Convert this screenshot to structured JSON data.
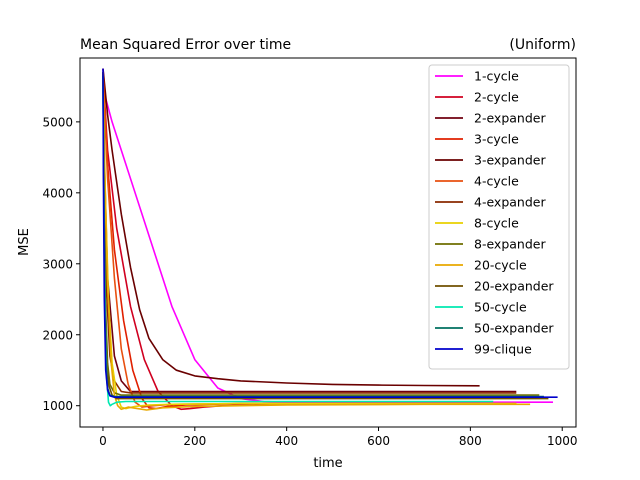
{
  "chart_data": {
    "type": "line",
    "title": "Mean Squared Error over time",
    "subtitle": "(Uniform)",
    "xlabel": "time",
    "ylabel": "MSE",
    "xlim": [
      -50,
      1030
    ],
    "ylim": [
      700,
      5900
    ],
    "xticks": [
      0,
      200,
      400,
      600,
      800,
      1000
    ],
    "yticks": [
      1000,
      2000,
      3000,
      4000,
      5000
    ],
    "grid": false,
    "legend_position": "upper-right",
    "series": [
      {
        "name": "1-cycle",
        "color": "#ff00ff",
        "x": [
          0,
          5,
          20,
          50,
          100,
          150,
          200,
          250,
          300,
          350,
          400,
          500,
          600,
          700,
          800,
          900,
          980
        ],
        "y": [
          5750,
          5350,
          5000,
          4400,
          3400,
          2400,
          1650,
          1250,
          1100,
          1060,
          1050,
          1050,
          1050,
          1050,
          1050,
          1050,
          1050
        ]
      },
      {
        "name": "2-cycle",
        "color": "#d00020",
        "x": [
          0,
          10,
          30,
          60,
          90,
          120,
          150,
          170,
          190,
          220,
          260,
          350,
          500,
          700,
          820
        ],
        "y": [
          5700,
          4600,
          3500,
          2400,
          1650,
          1200,
          1000,
          950,
          960,
          980,
          1000,
          1020,
          1030,
          1030,
          1030
        ]
      },
      {
        "name": "2-expander",
        "color": "#700010",
        "x": [
          0,
          3,
          10,
          25,
          40,
          60,
          100,
          200,
          400,
          600,
          900
        ],
        "y": [
          5700,
          4500,
          2800,
          1700,
          1350,
          1200,
          1200,
          1200,
          1200,
          1200,
          1200
        ]
      },
      {
        "name": "3-cycle",
        "color": "#e02000",
        "x": [
          0,
          10,
          25,
          45,
          65,
          85,
          100,
          115,
          140,
          180,
          300,
          500,
          700,
          850
        ],
        "y": [
          5700,
          4400,
          3200,
          2200,
          1500,
          1100,
          970,
          960,
          990,
          1010,
          1030,
          1030,
          1030,
          1030
        ]
      },
      {
        "name": "3-expander",
        "color": "#6a0000",
        "x": [
          0,
          10,
          20,
          40,
          60,
          80,
          100,
          130,
          160,
          200,
          250,
          300,
          400,
          500,
          600,
          700,
          820
        ],
        "y": [
          5750,
          5100,
          4600,
          3700,
          2950,
          2350,
          1950,
          1650,
          1500,
          1420,
          1380,
          1350,
          1320,
          1300,
          1290,
          1285,
          1280
        ]
      },
      {
        "name": "4-cycle",
        "color": "#e85010",
        "x": [
          0,
          10,
          25,
          40,
          55,
          70,
          85,
          110,
          150,
          300,
          500,
          700,
          900
        ],
        "y": [
          5700,
          4200,
          2800,
          1800,
          1300,
          1050,
          980,
          1000,
          1020,
          1030,
          1030,
          1030,
          1030
        ]
      },
      {
        "name": "4-expander",
        "color": "#8a2a00",
        "x": [
          0,
          3,
          8,
          15,
          25,
          40,
          60,
          100,
          300,
          600,
          900
        ],
        "y": [
          5700,
          4200,
          2600,
          1700,
          1350,
          1200,
          1180,
          1180,
          1180,
          1180,
          1180
        ]
      },
      {
        "name": "8-cycle",
        "color": "#e8d000",
        "x": [
          0,
          5,
          12,
          20,
          30,
          40,
          50,
          70,
          100,
          150,
          300,
          600,
          900
        ],
        "y": [
          5600,
          4000,
          2500,
          1600,
          1150,
          980,
          960,
          990,
          1010,
          1020,
          1030,
          1030,
          1030
        ]
      },
      {
        "name": "8-expander",
        "color": "#6e6e00",
        "x": [
          0,
          2,
          5,
          10,
          15,
          25,
          40,
          100,
          300,
          600,
          950
        ],
        "y": [
          5700,
          4000,
          2500,
          1600,
          1300,
          1180,
          1150,
          1150,
          1150,
          1150,
          1150
        ]
      },
      {
        "name": "20-cycle",
        "color": "#e8a800",
        "x": [
          0,
          4,
          10,
          18,
          25,
          32,
          40,
          55,
          75,
          95,
          130,
          200,
          400,
          700,
          930
        ],
        "y": [
          5600,
          4200,
          2700,
          1600,
          1150,
          1000,
          950,
          980,
          960,
          940,
          970,
          990,
          1010,
          1020,
          1020
        ]
      },
      {
        "name": "20-expander",
        "color": "#705000",
        "x": [
          0,
          2,
          4,
          8,
          12,
          20,
          30,
          60,
          200,
          500,
          970
        ],
        "y": [
          5650,
          4000,
          2500,
          1600,
          1300,
          1150,
          1100,
          1100,
          1100,
          1100,
          1100
        ]
      },
      {
        "name": "50-cycle",
        "color": "#00e8b0",
        "x": [
          0,
          2,
          5,
          8,
          12,
          16,
          20,
          30,
          50,
          100,
          300,
          600,
          850
        ],
        "y": [
          5500,
          3800,
          2200,
          1400,
          1050,
          1000,
          1020,
          1050,
          1060,
          1060,
          1060,
          1060,
          1060
        ]
      },
      {
        "name": "50-expander",
        "color": "#007060",
        "x": [
          0,
          2,
          4,
          7,
          10,
          15,
          25,
          50,
          200,
          500,
          960
        ],
        "y": [
          5650,
          3900,
          2400,
          1500,
          1250,
          1150,
          1130,
          1130,
          1130,
          1130,
          1130
        ]
      },
      {
        "name": "99-clique",
        "color": "#0000cc",
        "x": [
          0,
          1,
          3,
          6,
          10,
          15,
          25,
          50,
          200,
          500,
          990
        ],
        "y": [
          5750,
          4200,
          2500,
          1500,
          1220,
          1140,
          1120,
          1120,
          1120,
          1120,
          1120
        ]
      }
    ]
  }
}
